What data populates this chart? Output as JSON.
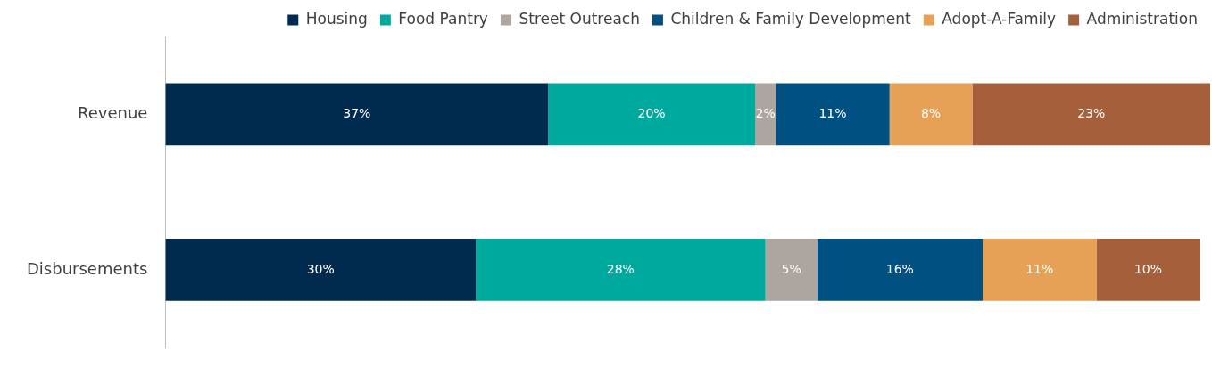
{
  "chart_data": {
    "type": "bar",
    "orientation": "horizontal",
    "stacked": true,
    "categories": [
      "Revenue",
      "Disbursements"
    ],
    "series": [
      {
        "name": "Housing",
        "color": "#002b4e",
        "values": [
          37,
          30
        ],
        "value_labels": [
          "37%",
          "30%"
        ]
      },
      {
        "name": "Food Pantry",
        "color": "#00a99d",
        "values": [
          20,
          28
        ],
        "value_labels": [
          "20%",
          "28%"
        ]
      },
      {
        "name": "Street Outreach",
        "color": "#ada59f",
        "values": [
          2,
          5
        ],
        "value_labels": [
          "2%",
          "5%"
        ]
      },
      {
        "name": "Children & Family Development",
        "color": "#005082",
        "values": [
          11,
          16
        ],
        "value_labels": [
          "11%",
          "16%"
        ]
      },
      {
        "name": "Adopt-A-Family",
        "color": "#e6a157",
        "values": [
          8,
          11
        ],
        "value_labels": [
          "8%",
          "11%"
        ]
      },
      {
        "name": "Administration",
        "color": "#a55f3b",
        "values": [
          23,
          10
        ],
        "value_labels": [
          "23%",
          "10%"
        ]
      }
    ],
    "legend": "top right"
  }
}
